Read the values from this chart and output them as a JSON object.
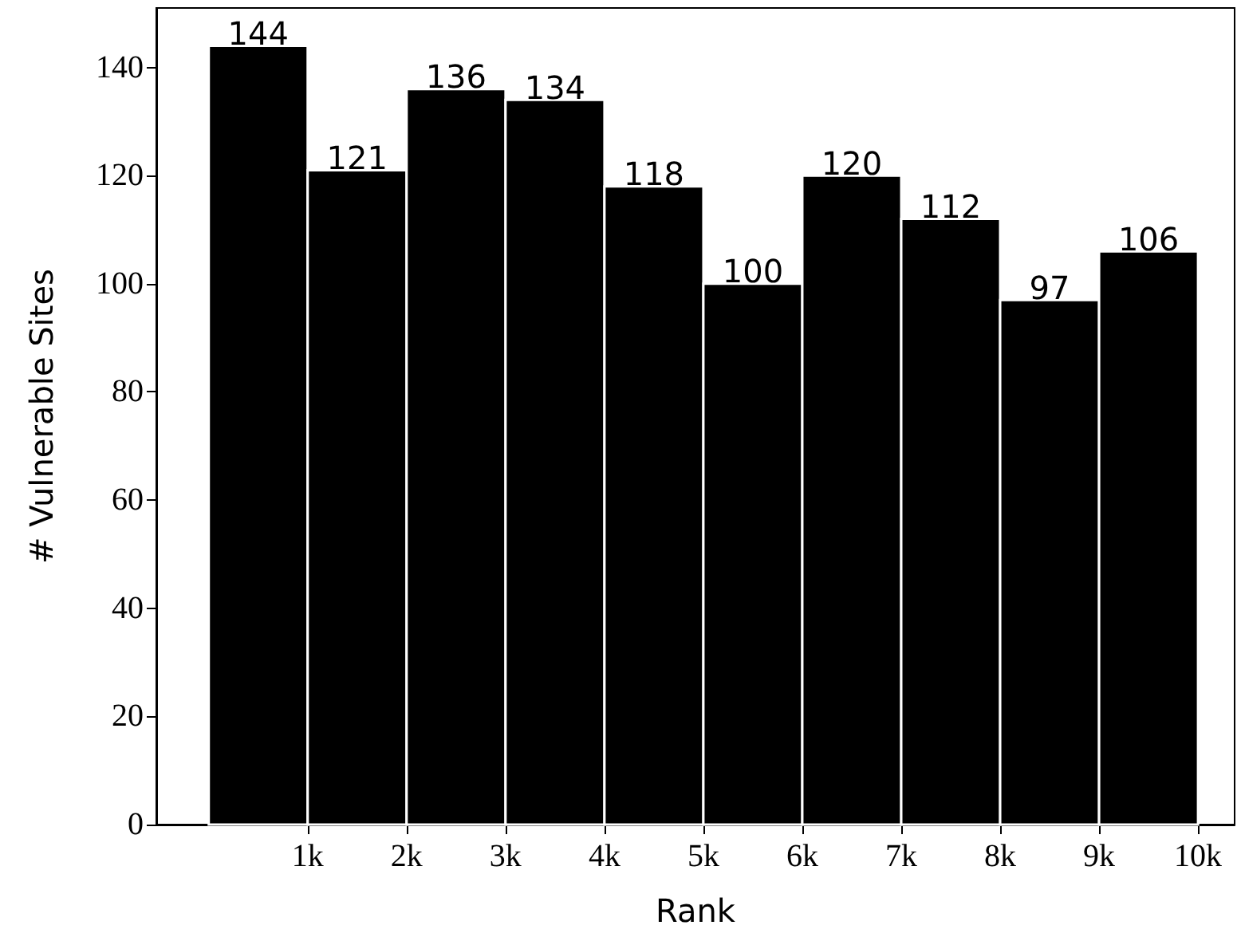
{
  "chart_data": {
    "type": "histogram",
    "xlabel": "Rank",
    "ylabel": "# Vulnerable Sites",
    "bins": [
      0,
      1000,
      2000,
      3000,
      4000,
      5000,
      6000,
      7000,
      8000,
      9000,
      10000
    ],
    "values": [
      144,
      121,
      136,
      134,
      118,
      100,
      120,
      112,
      97,
      106
    ],
    "color": "#000000",
    "data_labels": true,
    "xlim": [
      -530,
      10370
    ],
    "xticks": [
      {
        "value": 1000,
        "label": "1k"
      },
      {
        "value": 2000,
        "label": "2k"
      },
      {
        "value": 3000,
        "label": "3k"
      },
      {
        "value": 4000,
        "label": "4k"
      },
      {
        "value": 5000,
        "label": "5k"
      },
      {
        "value": 6000,
        "label": "6k"
      },
      {
        "value": 7000,
        "label": "7k"
      },
      {
        "value": 8000,
        "label": "8k"
      },
      {
        "value": 9000,
        "label": "9k"
      },
      {
        "value": 10000,
        "label": "10k"
      }
    ],
    "ylim": [
      0,
      151
    ],
    "yticks": [
      0,
      20,
      40,
      60,
      80,
      100,
      120,
      140
    ],
    "grid": false
  }
}
